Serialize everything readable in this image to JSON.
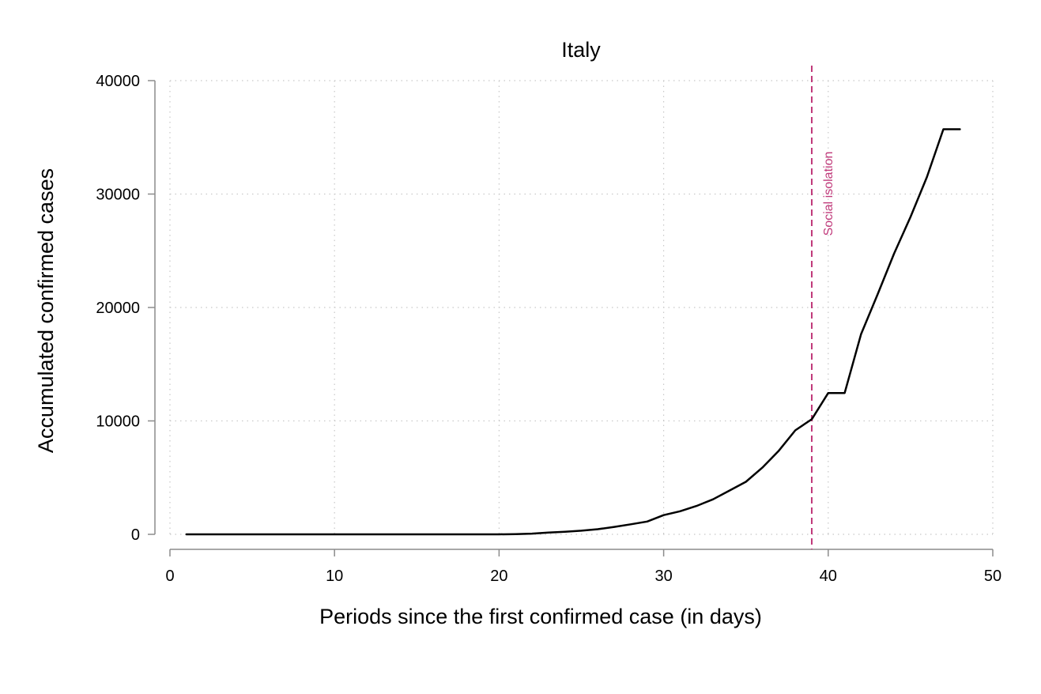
{
  "chart_data": {
    "type": "line",
    "title": "Italy",
    "xlabel": "Periods since the first confirmed case (in days)",
    "ylabel": "Accumulated confirmed cases",
    "xlim": [
      0,
      50
    ],
    "ylim": [
      0,
      40000
    ],
    "xticks": [
      0,
      10,
      20,
      30,
      40,
      50
    ],
    "yticks": [
      0,
      10000,
      20000,
      30000,
      40000
    ],
    "grid": true,
    "series": [
      {
        "color": "#000000",
        "x": [
          1,
          2,
          3,
          4,
          5,
          6,
          7,
          8,
          9,
          10,
          11,
          12,
          13,
          14,
          15,
          16,
          17,
          18,
          19,
          20,
          21,
          22,
          23,
          24,
          25,
          26,
          27,
          28,
          29,
          30,
          31,
          32,
          33,
          34,
          35,
          36,
          37,
          38,
          39,
          40,
          41,
          42,
          43,
          44,
          45,
          46,
          47,
          48
        ],
        "y": [
          2,
          2,
          2,
          2,
          2,
          2,
          2,
          2,
          2,
          2,
          2,
          2,
          2,
          2,
          2,
          2,
          2,
          2,
          2,
          3,
          20,
          62,
          155,
          229,
          322,
          453,
          655,
          888,
          1128,
          1694,
          2036,
          2502,
          3089,
          3858,
          4636,
          5883,
          7375,
          9172,
          10149,
          12462,
          12462,
          17660,
          21157,
          24747,
          27980,
          31506,
          35713,
          35713
        ]
      }
    ],
    "annotations": [
      {
        "type": "vline",
        "x": 39,
        "label": "Social isolation",
        "color": "#c0397a"
      }
    ]
  }
}
